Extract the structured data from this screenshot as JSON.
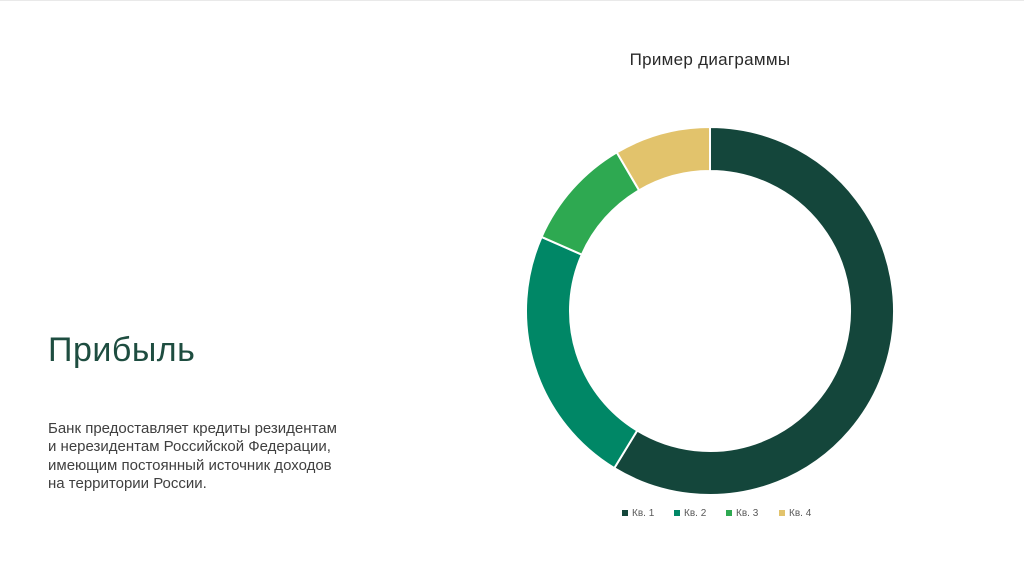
{
  "slide": {
    "heading": "Прибыль",
    "body": "Банк предоставляет кредиты резидентам и нерезидентам Российской Федерации, имеющим постоянный источник доходов на территории России."
  },
  "chart_data": {
    "type": "pie",
    "variant": "doughnut",
    "title": "Пример диаграммы",
    "categories": [
      "Кв. 1",
      "Кв. 2",
      "Кв. 3",
      "Кв. 4"
    ],
    "values": [
      59,
      23,
      10,
      8.5
    ],
    "colors": [
      "#14463b",
      "#008766",
      "#2ea951",
      "#e2c36c"
    ],
    "legend_position": "bottom"
  }
}
